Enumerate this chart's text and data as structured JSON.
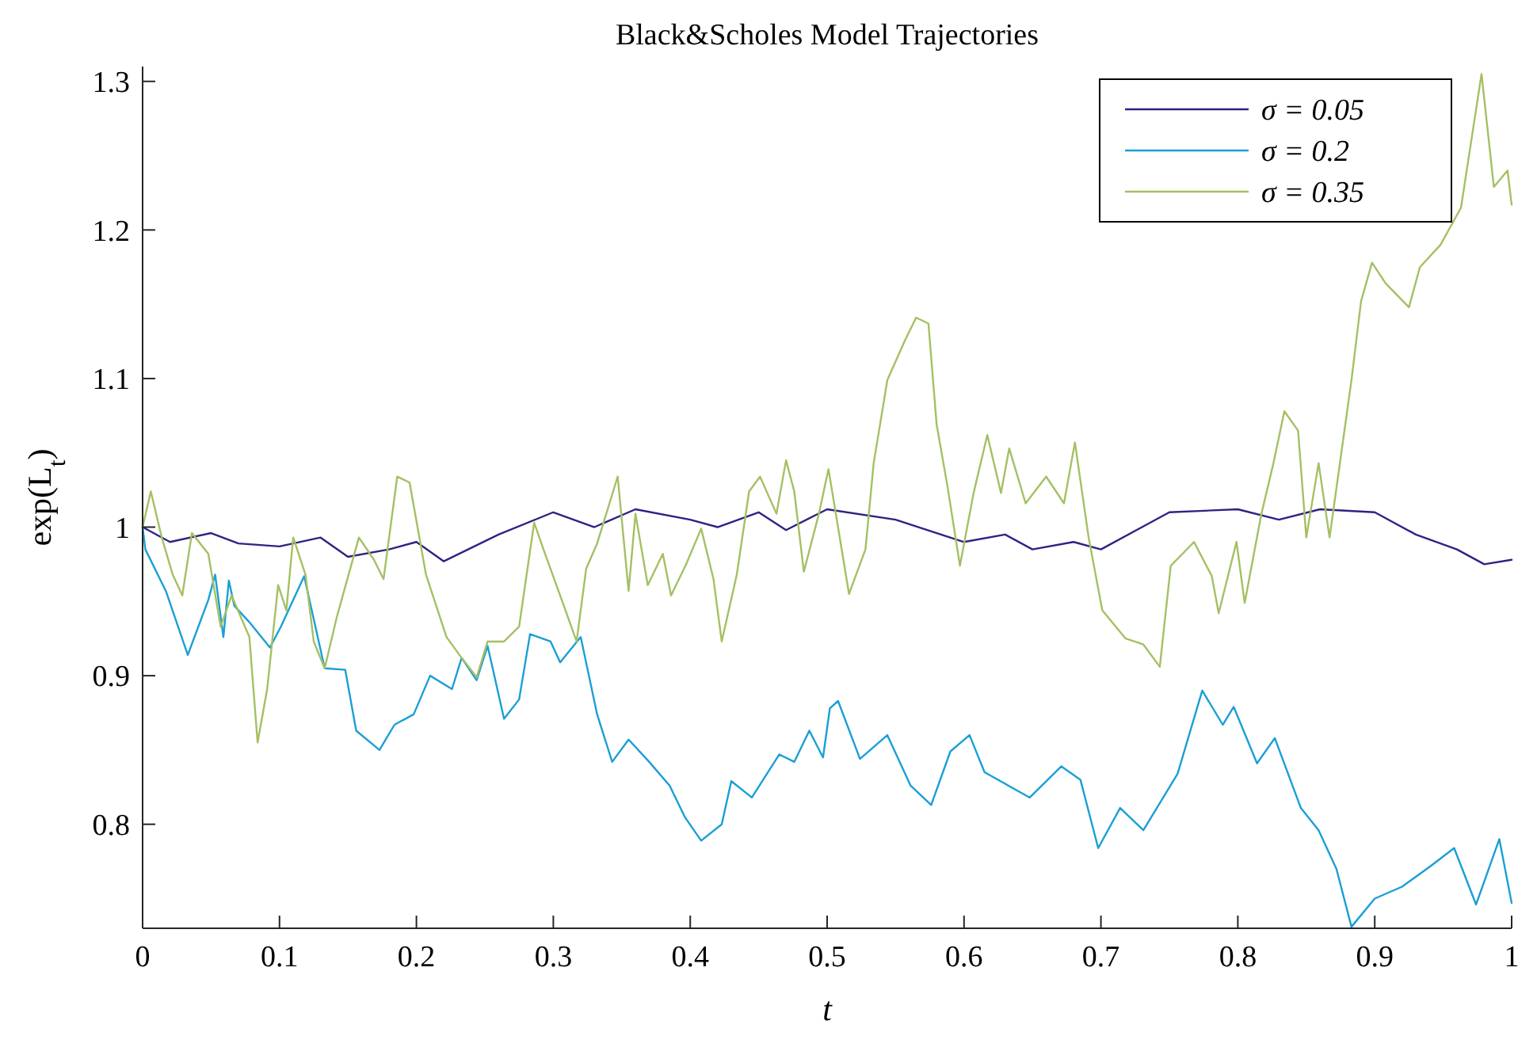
{
  "chart_data": {
    "type": "line",
    "title": "Black&Scholes Model Trajectories",
    "xlabel": "t",
    "ylabel": "exp(L$_{t}$)",
    "xlim": [
      0,
      1
    ],
    "xticks": [
      0,
      0.1,
      0.2,
      0.3,
      0.4,
      0.5,
      0.6,
      0.7,
      0.8,
      0.9,
      1
    ],
    "ylim": [
      0.73,
      1.31
    ],
    "yticks": [
      0.8,
      0.9,
      1,
      1.1,
      1.2,
      1.3
    ],
    "grid": false,
    "legend": "top right",
    "line_style": "solid",
    "marker": "none",
    "series": [
      {
        "name": "σ = 0.05",
        "color": "#2e2383",
        "x": [
          0,
          0.02,
          0.05,
          0.07,
          0.1,
          0.13,
          0.15,
          0.18,
          0.2,
          0.22,
          0.26,
          0.3,
          0.33,
          0.36,
          0.4,
          0.42,
          0.45,
          0.47,
          0.5,
          0.55,
          0.6,
          0.63,
          0.65,
          0.68,
          0.7,
          0.73,
          0.75,
          0.8,
          0.83,
          0.86,
          0.9,
          0.93,
          0.96,
          0.98,
          1
        ],
        "values": [
          1.0,
          0.99,
          0.996,
          0.989,
          0.987,
          0.993,
          0.98,
          0.985,
          0.99,
          0.977,
          0.995,
          1.01,
          1.0,
          1.012,
          1.005,
          1.0,
          1.01,
          0.998,
          1.012,
          1.005,
          0.99,
          0.995,
          0.985,
          0.99,
          0.985,
          1.0,
          1.01,
          1.012,
          1.005,
          1.012,
          1.01,
          0.995,
          0.985,
          0.975,
          0.978
        ]
      },
      {
        "name": "σ = 0.2",
        "color": "#1a9fd6",
        "x": [
          0,
          0.002,
          0.017,
          0.033,
          0.048,
          0.053,
          0.059,
          0.063,
          0.067,
          0.078,
          0.093,
          0.101,
          0.118,
          0.133,
          0.148,
          0.156,
          0.173,
          0.184,
          0.198,
          0.21,
          0.226,
          0.233,
          0.244,
          0.252,
          0.264,
          0.275,
          0.283,
          0.298,
          0.305,
          0.32,
          0.332,
          0.343,
          0.355,
          0.37,
          0.385,
          0.396,
          0.408,
          0.423,
          0.43,
          0.445,
          0.465,
          0.476,
          0.487,
          0.497,
          0.502,
          0.508,
          0.524,
          0.544,
          0.561,
          0.576,
          0.59,
          0.604,
          0.615,
          0.648,
          0.671,
          0.685,
          0.698,
          0.714,
          0.731,
          0.756,
          0.774,
          0.789,
          0.797,
          0.814,
          0.827,
          0.846,
          0.859,
          0.872,
          0.883,
          0.9,
          0.92,
          0.941,
          0.958,
          0.974,
          0.991,
          1.0
        ],
        "values": [
          1.0,
          0.985,
          0.957,
          0.914,
          0.951,
          0.968,
          0.926,
          0.964,
          0.947,
          0.936,
          0.919,
          0.933,
          0.967,
          0.905,
          0.904,
          0.863,
          0.85,
          0.867,
          0.874,
          0.9,
          0.891,
          0.912,
          0.897,
          0.92,
          0.871,
          0.884,
          0.928,
          0.923,
          0.909,
          0.926,
          0.874,
          0.842,
          0.857,
          0.842,
          0.826,
          0.805,
          0.789,
          0.8,
          0.829,
          0.818,
          0.847,
          0.842,
          0.863,
          0.845,
          0.878,
          0.883,
          0.844,
          0.86,
          0.826,
          0.813,
          0.849,
          0.86,
          0.835,
          0.818,
          0.839,
          0.83,
          0.784,
          0.811,
          0.796,
          0.834,
          0.89,
          0.867,
          0.879,
          0.841,
          0.858,
          0.811,
          0.796,
          0.77,
          0.731,
          0.75,
          0.758,
          0.772,
          0.784,
          0.746,
          0.79,
          0.747
        ]
      },
      {
        "name": "σ = 0.35",
        "color": "#a4c064",
        "x": [
          0,
          0.006,
          0.014,
          0.022,
          0.029,
          0.036,
          0.048,
          0.057,
          0.065,
          0.078,
          0.084,
          0.091,
          0.099,
          0.105,
          0.11,
          0.119,
          0.125,
          0.133,
          0.142,
          0.158,
          0.169,
          0.176,
          0.186,
          0.195,
          0.207,
          0.222,
          0.233,
          0.244,
          0.252,
          0.264,
          0.275,
          0.286,
          0.294,
          0.305,
          0.317,
          0.324,
          0.332,
          0.347,
          0.355,
          0.36,
          0.369,
          0.38,
          0.386,
          0.397,
          0.408,
          0.417,
          0.423,
          0.434,
          0.443,
          0.451,
          0.463,
          0.47,
          0.476,
          0.483,
          0.494,
          0.501,
          0.516,
          0.528,
          0.534,
          0.544,
          0.557,
          0.565,
          0.574,
          0.58,
          0.588,
          0.597,
          0.607,
          0.617,
          0.627,
          0.633,
          0.645,
          0.66,
          0.673,
          0.681,
          0.691,
          0.701,
          0.718,
          0.731,
          0.743,
          0.751,
          0.768,
          0.781,
          0.786,
          0.799,
          0.805,
          0.817,
          0.826,
          0.834,
          0.844,
          0.85,
          0.859,
          0.867,
          0.875,
          0.883,
          0.89,
          0.898,
          0.908,
          0.925,
          0.933,
          0.948,
          0.963,
          0.978,
          0.987,
          0.997,
          1.0
        ],
        "values": [
          1.0,
          1.024,
          0.993,
          0.968,
          0.954,
          0.996,
          0.982,
          0.933,
          0.954,
          0.926,
          0.855,
          0.891,
          0.961,
          0.944,
          0.993,
          0.968,
          0.923,
          0.905,
          0.94,
          0.993,
          0.978,
          0.965,
          1.034,
          1.03,
          0.968,
          0.926,
          0.912,
          0.899,
          0.923,
          0.923,
          0.933,
          1.003,
          0.982,
          0.954,
          0.923,
          0.972,
          0.989,
          1.034,
          0.957,
          1.009,
          0.961,
          0.982,
          0.954,
          0.975,
          0.999,
          0.965,
          0.923,
          0.968,
          1.024,
          1.034,
          1.009,
          1.045,
          1.024,
          0.97,
          1.009,
          1.039,
          0.955,
          0.985,
          1.043,
          1.099,
          1.126,
          1.141,
          1.137,
          1.069,
          1.027,
          0.974,
          1.023,
          1.062,
          1.023,
          1.053,
          1.016,
          1.034,
          1.016,
          1.057,
          0.993,
          0.944,
          0.925,
          0.921,
          0.906,
          0.974,
          0.99,
          0.967,
          0.942,
          0.99,
          0.949,
          1.008,
          1.043,
          1.078,
          1.065,
          0.993,
          1.043,
          0.993,
          1.046,
          1.099,
          1.152,
          1.178,
          1.164,
          1.148,
          1.175,
          1.19,
          1.215,
          1.305,
          1.229,
          1.24,
          1.217
        ]
      }
    ]
  }
}
